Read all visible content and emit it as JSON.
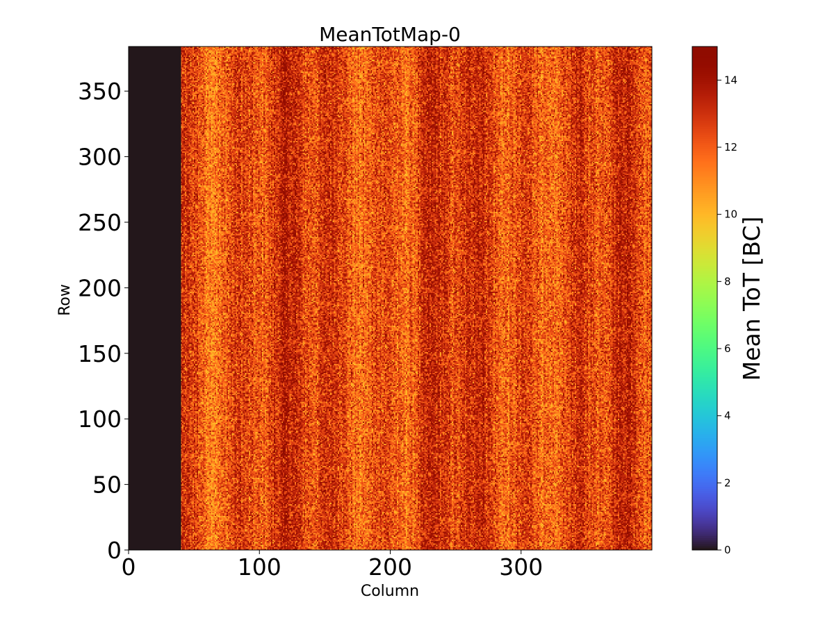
{
  "chart_data": {
    "type": "heatmap",
    "title": "MeanTotMap-0",
    "xlabel": "Column",
    "ylabel": "Row",
    "xlim": [
      0,
      400
    ],
    "ylim": [
      0,
      384
    ],
    "xticks": [
      "0",
      "100",
      "200",
      "300"
    ],
    "yticks": [
      "0",
      "50",
      "100",
      "150",
      "200",
      "250",
      "300",
      "350"
    ],
    "colorbar": {
      "label": "Mean ToT [BC]",
      "range": [
        0,
        15
      ],
      "ticks": [
        "0",
        "2",
        "4",
        "6",
        "8",
        "10",
        "12",
        "14"
      ],
      "colormap": "turbo"
    },
    "dead_columns": [
      0,
      40
    ],
    "dead_value": 0,
    "active_value_range": [
      10,
      15
    ],
    "active_mean_value": 12.5
  }
}
